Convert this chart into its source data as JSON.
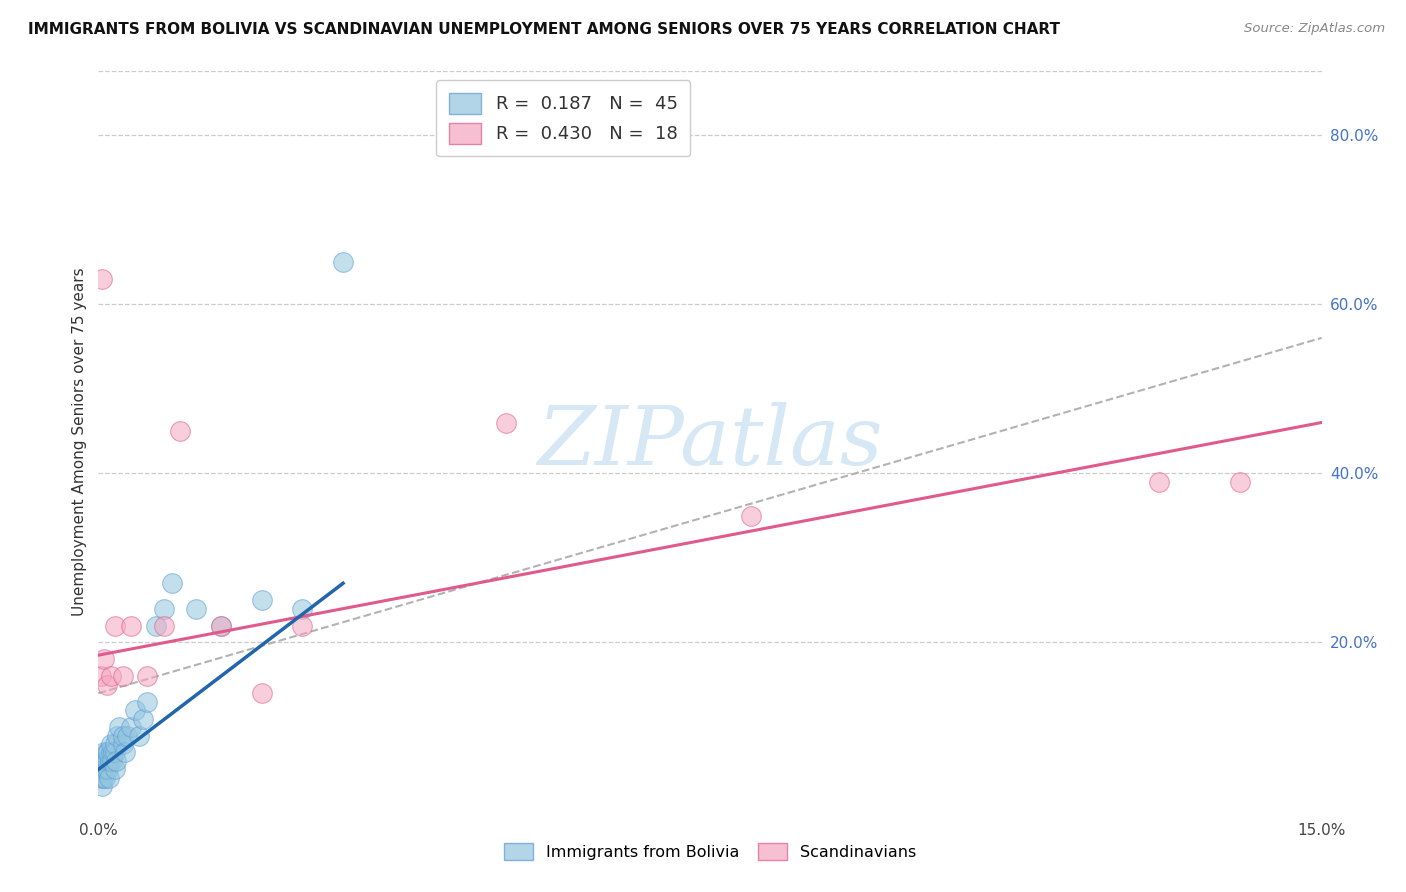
{
  "title": "IMMIGRANTS FROM BOLIVIA VS SCANDINAVIAN UNEMPLOYMENT AMONG SENIORS OVER 75 YEARS CORRELATION CHART",
  "source": "Source: ZipAtlas.com",
  "ylabel": "Unemployment Among Seniors over 75 years",
  "xlim": [
    0.0,
    0.15
  ],
  "ylim": [
    0.0,
    0.875
  ],
  "r1": 0.187,
  "n1": 45,
  "r2": 0.43,
  "n2": 18,
  "color_blue": "#92c5de",
  "color_pink": "#f4a6c0",
  "color_edge_blue": "#5b9bd5",
  "color_edge_pink": "#e05a8a",
  "color_line_blue": "#2166ac",
  "color_line_pink": "#e05a8a",
  "watermark_color": "#d6e8f5",
  "bolivia_x": [
    0.0002,
    0.0003,
    0.0004,
    0.0005,
    0.0005,
    0.0006,
    0.0006,
    0.0007,
    0.0007,
    0.0008,
    0.0008,
    0.0009,
    0.001,
    0.001,
    0.0012,
    0.0012,
    0.0013,
    0.0014,
    0.0015,
    0.0016,
    0.0017,
    0.0018,
    0.002,
    0.002,
    0.002,
    0.0022,
    0.0023,
    0.0025,
    0.003,
    0.003,
    0.0032,
    0.0035,
    0.004,
    0.0045,
    0.005,
    0.0055,
    0.006,
    0.007,
    0.008,
    0.009,
    0.012,
    0.015,
    0.02,
    0.025,
    0.03
  ],
  "bolivia_y": [
    0.05,
    0.04,
    0.03,
    0.05,
    0.06,
    0.04,
    0.06,
    0.05,
    0.07,
    0.04,
    0.06,
    0.05,
    0.06,
    0.07,
    0.05,
    0.07,
    0.04,
    0.06,
    0.07,
    0.08,
    0.06,
    0.07,
    0.05,
    0.07,
    0.08,
    0.06,
    0.09,
    0.1,
    0.08,
    0.09,
    0.07,
    0.09,
    0.1,
    0.12,
    0.09,
    0.11,
    0.13,
    0.22,
    0.24,
    0.27,
    0.24,
    0.22,
    0.25,
    0.24,
    0.65
  ],
  "scand_x": [
    0.0003,
    0.0005,
    0.0007,
    0.001,
    0.0015,
    0.002,
    0.003,
    0.004,
    0.006,
    0.008,
    0.01,
    0.015,
    0.02,
    0.025,
    0.05,
    0.08,
    0.13,
    0.14
  ],
  "scand_y": [
    0.16,
    0.63,
    0.18,
    0.15,
    0.16,
    0.22,
    0.16,
    0.22,
    0.16,
    0.22,
    0.45,
    0.22,
    0.14,
    0.22,
    0.46,
    0.35,
    0.39,
    0.39
  ],
  "trendline_blue_x0": 0.0,
  "trendline_blue_y0": 0.05,
  "trendline_blue_x1": 0.03,
  "trendline_blue_y1": 0.27,
  "trendline_pink_x0": 0.0,
  "trendline_pink_y0": 0.185,
  "trendline_pink_x1": 0.15,
  "trendline_pink_y1": 0.46,
  "trendline_dash_x0": 0.0,
  "trendline_dash_y0": 0.14,
  "trendline_dash_x1": 0.15,
  "trendline_dash_y1": 0.56
}
